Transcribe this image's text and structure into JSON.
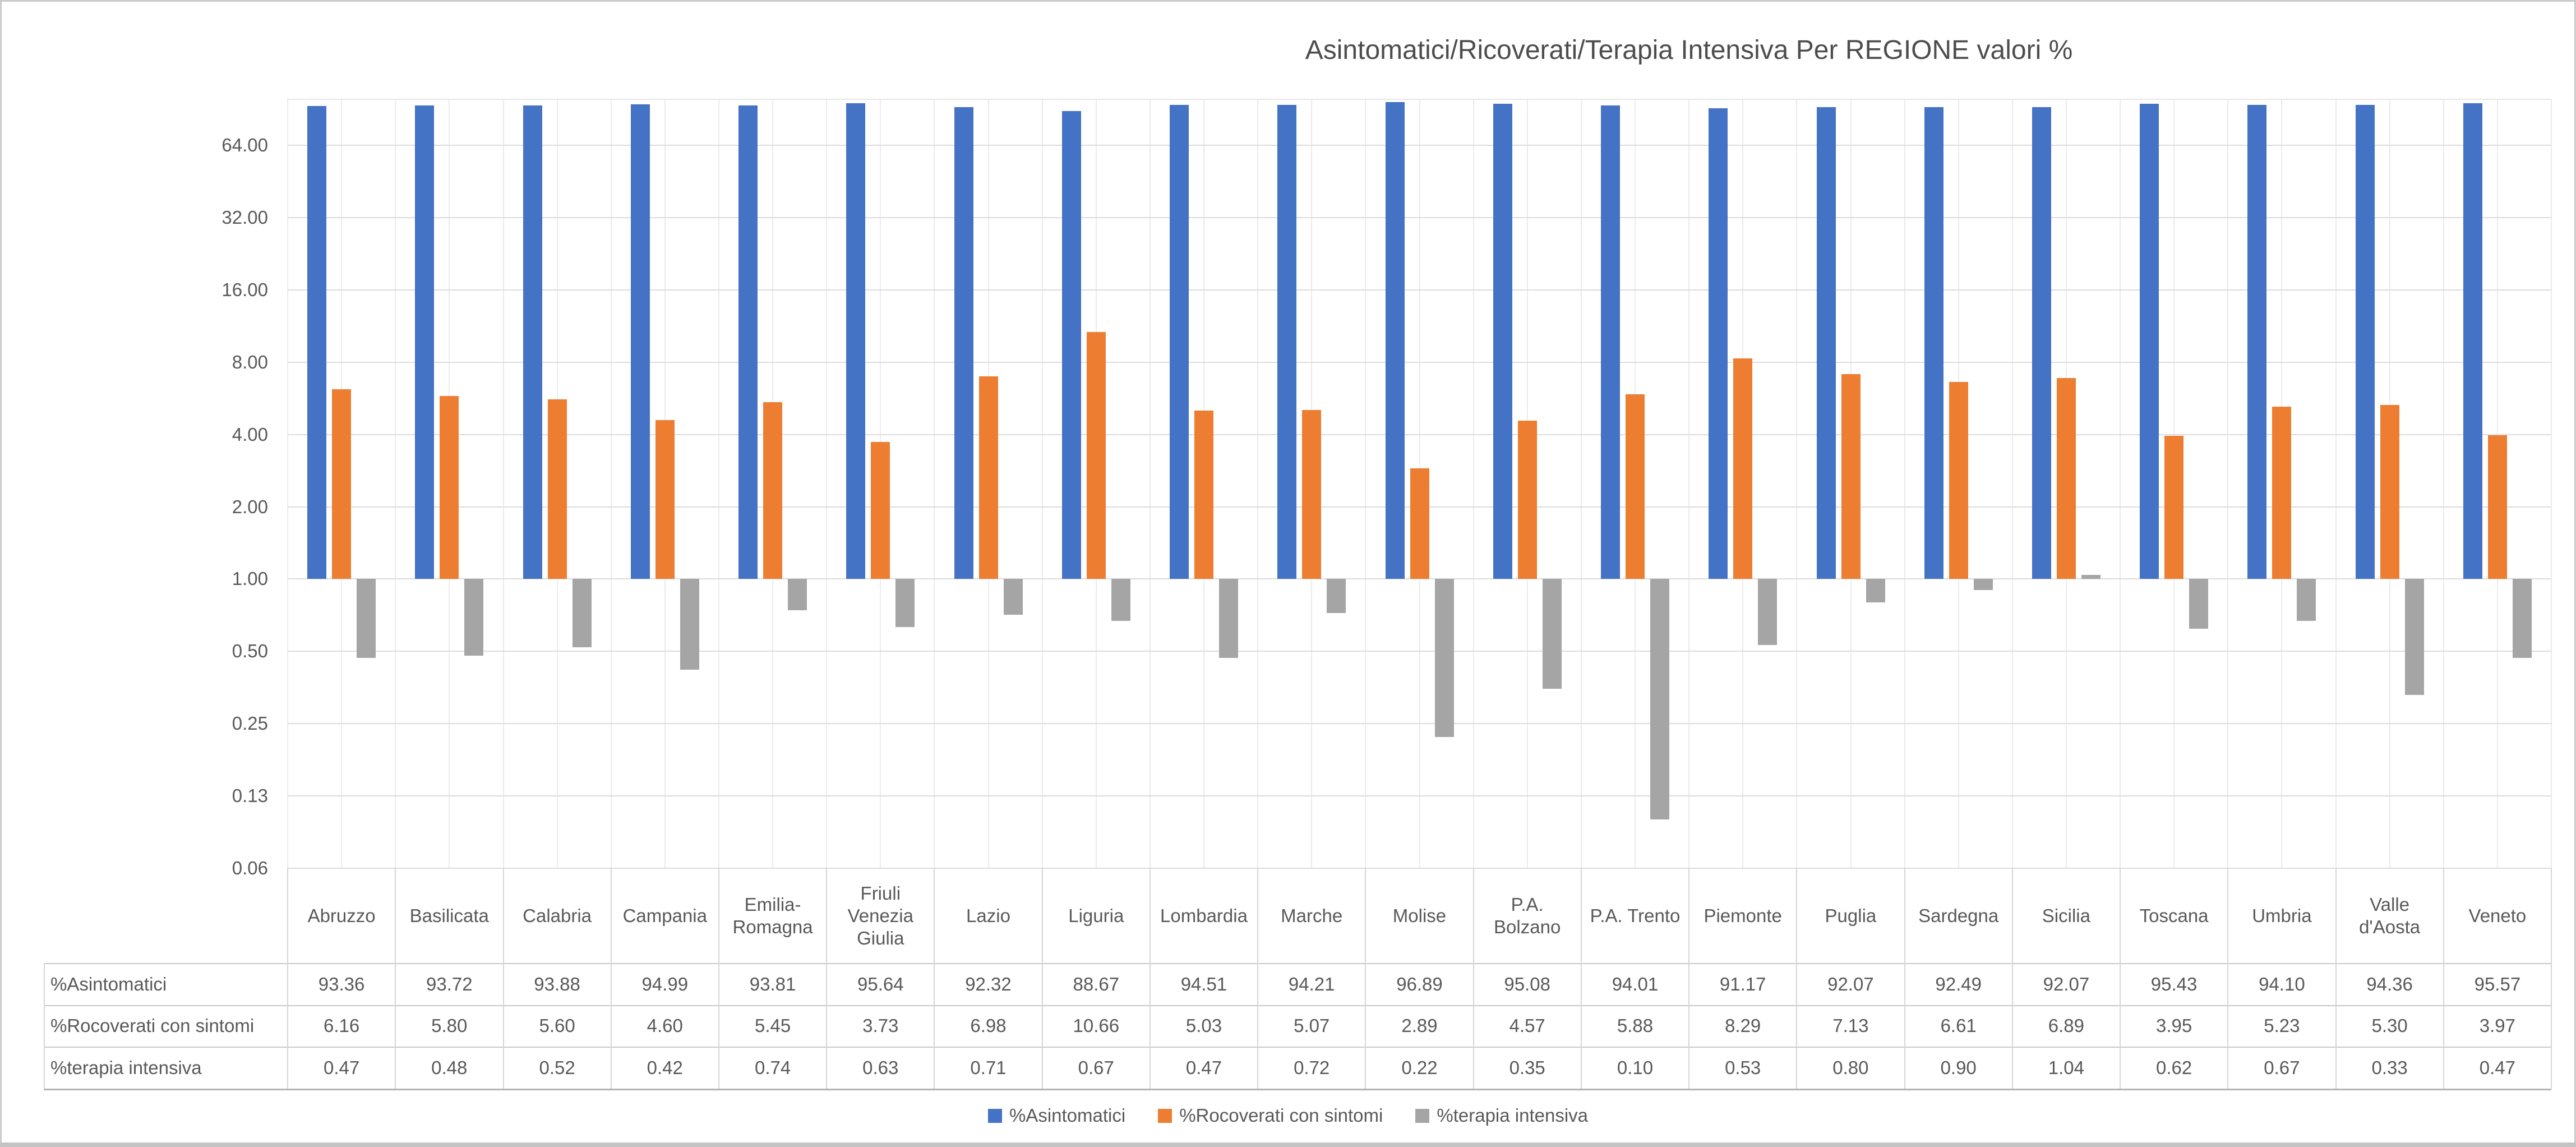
{
  "chart_title": "Asintomatici/Ricoverati/Terapia Intensiva Per REGIONE valori %",
  "colors": {
    "asintomatici": "#4472C4",
    "ricoverati_con_sintomi": "#ED7D31",
    "terapia_intensiva": "#A5A5A5",
    "text": "#595959",
    "gridline": "#DCDCDC",
    "minor_vline": "#EBEBEB",
    "table_border": "#C9C9C9",
    "canvas_border": "#CBCBCB"
  },
  "y_axis": {
    "scale": "log2",
    "min": 0.0625,
    "max": 100,
    "tick_values": [
      64,
      32,
      16,
      8,
      4,
      2,
      1,
      0.5,
      0.25,
      0.125,
      0.0625
    ],
    "tick_labels": [
      "64.00",
      "32.00",
      "16.00",
      "8.00",
      "4.00",
      "2.00",
      "1.00",
      "0.50",
      "0.25",
      "0.13",
      "0.06"
    ]
  },
  "legend": {
    "position": "bottom",
    "items": [
      {
        "key": "asintomatici",
        "label": "%Asintomatici",
        "color": "#4472C4"
      },
      {
        "key": "rocoverati-con-sintomi",
        "label": "%Rocoverati con sintomi",
        "color": "#ED7D31"
      },
      {
        "key": "terapia-intensiva",
        "label": "%terapia intensiva",
        "color": "#A5A5A5"
      }
    ]
  },
  "chart_data": {
    "type": "bar",
    "title": "Asintomatici/Ricoverati/Terapia Intensiva Per REGIONE valori %",
    "xlabel": "",
    "ylabel": "",
    "y_scale": "log2",
    "ylim": [
      0.0625,
      100
    ],
    "bar_baseline": 1,
    "grid": true,
    "legend_position": "bottom",
    "data_table_shown": true,
    "value_format": "2dp",
    "categories": [
      "Abruzzo",
      "Basilicata",
      "Calabria",
      "Campania",
      "Emilia-Romagna",
      "Friuli Venezia Giulia",
      "Lazio",
      "Liguria",
      "Lombardia",
      "Marche",
      "Molise",
      "P.A. Bolzano",
      "P.A. Trento",
      "Piemonte",
      "Puglia",
      "Sardegna",
      "Sicilia",
      "Toscana",
      "Umbria",
      "Valle d'Aosta",
      "Veneto"
    ],
    "series": [
      {
        "name": "%Asintomatici",
        "key": "asintomatici",
        "color": "#4472C4",
        "values": [
          93.36,
          93.72,
          93.88,
          94.99,
          93.81,
          95.64,
          92.32,
          88.67,
          94.51,
          94.21,
          96.89,
          95.08,
          94.01,
          91.17,
          92.07,
          92.49,
          92.07,
          95.43,
          94.1,
          94.36,
          95.57
        ]
      },
      {
        "name": "%Rocoverati con sintomi",
        "key": "rocoverati-con-sintomi",
        "color": "#ED7D31",
        "values": [
          6.16,
          5.8,
          5.6,
          4.6,
          5.45,
          3.73,
          6.98,
          10.66,
          5.03,
          5.07,
          2.89,
          4.57,
          5.88,
          8.29,
          7.13,
          6.61,
          6.89,
          3.95,
          5.23,
          5.3,
          3.97
        ]
      },
      {
        "name": "%terapia intensiva",
        "key": "terapia-intensiva",
        "color": "#A5A5A5",
        "values": [
          0.47,
          0.48,
          0.52,
          0.42,
          0.74,
          0.63,
          0.71,
          0.67,
          0.47,
          0.72,
          0.22,
          0.35,
          0.1,
          0.53,
          0.8,
          0.9,
          1.04,
          0.62,
          0.67,
          0.33,
          0.47
        ]
      }
    ]
  }
}
